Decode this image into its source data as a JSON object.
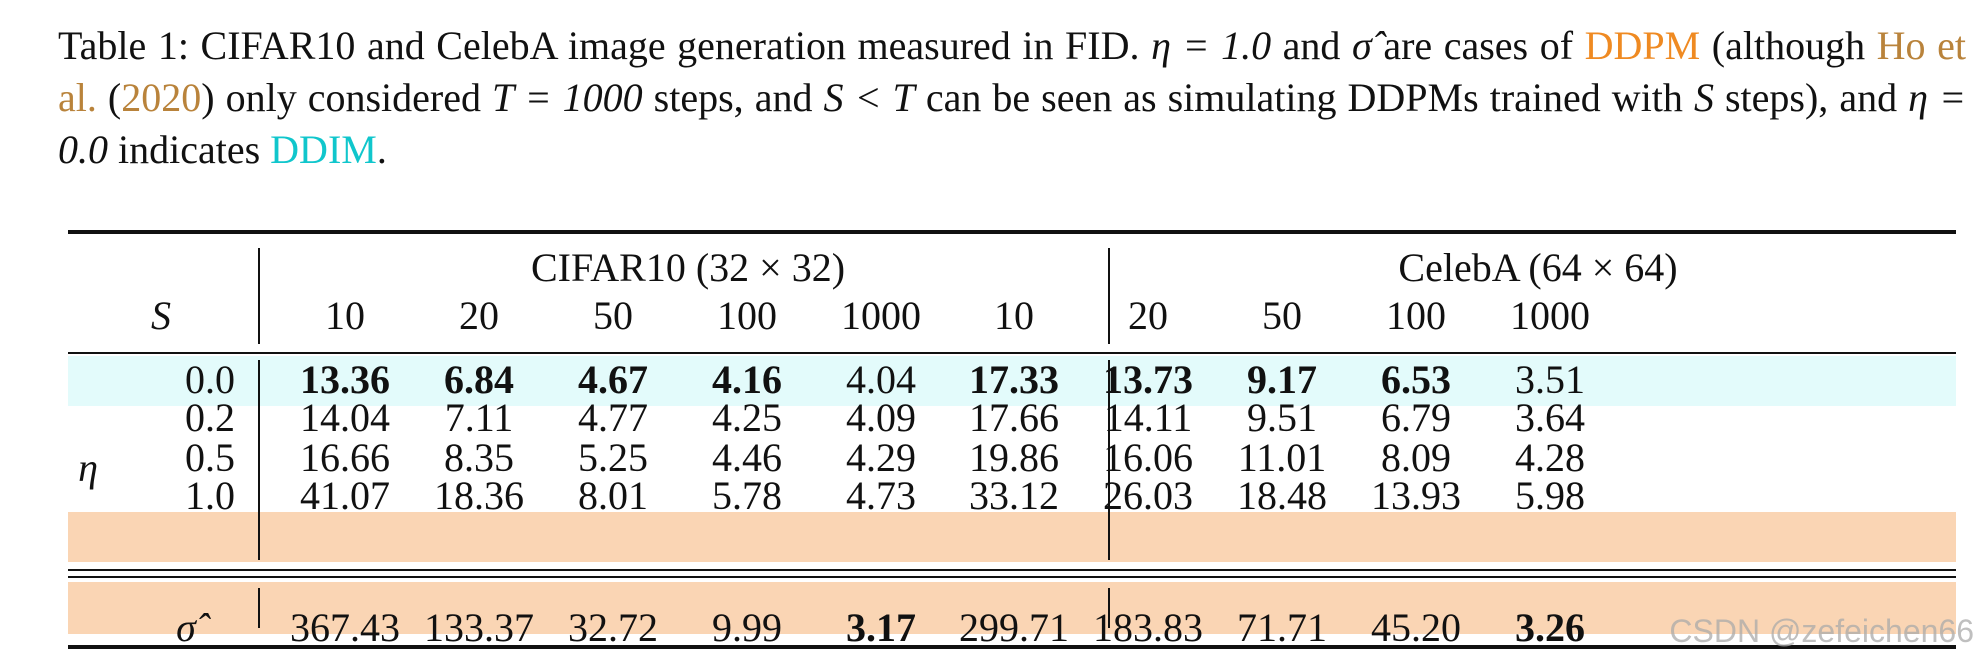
{
  "caption": {
    "label": "Table 1:",
    "text_1": " CIFAR10 and CelebA image generation measured in FID. ",
    "eta_expr": "η = 1.0",
    "text_2": " and ",
    "sigma": "σ̂",
    "text_3": " are cases of ",
    "ddpm": "DDPM",
    "text_4": " (although ",
    "cite_authors": "Ho et al.",
    "text_5": " (",
    "cite_year": "2020",
    "text_6": ") only considered ",
    "t_expr": "T = 1000",
    "text_7": " steps, and ",
    "st_expr": "S < T",
    "text_8": " can be seen as simulating DDPMs trained with ",
    "s": "S",
    "text_9": " steps), and ",
    "eta0_expr": "η = 0.0",
    "text_10": " indicates ",
    "ddim": "DDIM",
    "text_11": "."
  },
  "table": {
    "s_header": "S",
    "eta_label": "η",
    "groups": [
      "CIFAR10 (32 × 32)",
      "CelebA (64 × 64)"
    ],
    "steps": [
      "10",
      "20",
      "50",
      "100",
      "1000",
      "10",
      "20",
      "50",
      "100",
      "1000"
    ],
    "rows": [
      {
        "label": "0.0",
        "values": [
          "13.36",
          "6.84",
          "4.67",
          "4.16",
          "4.04",
          "17.33",
          "13.73",
          "9.17",
          "6.53",
          "3.51"
        ]
      },
      {
        "label": "0.2",
        "values": [
          "14.04",
          "7.11",
          "4.77",
          "4.25",
          "4.09",
          "17.66",
          "14.11",
          "9.51",
          "6.79",
          "3.64"
        ]
      },
      {
        "label": "0.5",
        "values": [
          "16.66",
          "8.35",
          "5.25",
          "4.46",
          "4.29",
          "19.86",
          "16.06",
          "11.01",
          "8.09",
          "4.28"
        ]
      },
      {
        "label": "1.0",
        "values": [
          "41.07",
          "18.36",
          "8.01",
          "5.78",
          "4.73",
          "33.12",
          "26.03",
          "18.48",
          "13.93",
          "5.98"
        ]
      },
      {
        "label": "σ̂",
        "values": [
          "367.43",
          "133.37",
          "32.72",
          "9.99",
          "3.17",
          "299.71",
          "183.83",
          "71.71",
          "45.20",
          "3.26"
        ]
      }
    ]
  },
  "colors": {
    "ddim_row": "#e3fbfb",
    "ddpm_row": "#fad5b4"
  },
  "watermark": "CSDN @zefeichen66"
}
